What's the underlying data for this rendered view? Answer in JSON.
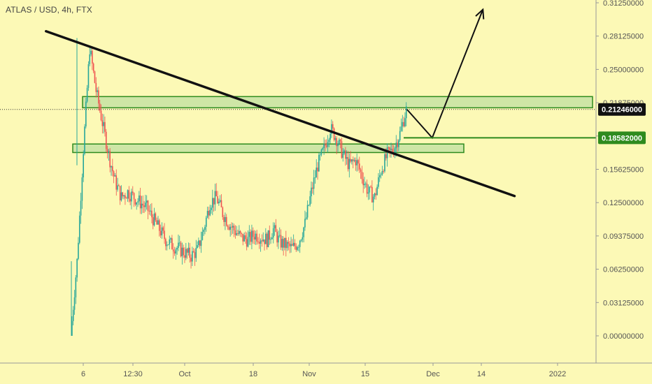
{
  "symbol_title": "ATLAS / USD, 4h, FTX",
  "colors": {
    "background": "#fcf9b6",
    "up_candle": "#26a69a",
    "down_candle": "#ef5350",
    "zone_fill": "#c9e3a4",
    "zone_stroke": "#2e8b1e",
    "drawing": "#111111",
    "axis_text": "#555555",
    "axis_line": "#999999"
  },
  "chart_data": {
    "type": "candlestick",
    "title": "ATLAS / USD, 4h, FTX",
    "y_axis": {
      "ticks": [
        "0.31250000",
        "0.28125000",
        "0.25000000",
        "0.21875000",
        "0.18750000",
        "0.15625000",
        "0.12500000",
        "0.09375000",
        "0.06250000",
        "0.03125000",
        "0.00000000"
      ],
      "range": [
        0.0,
        0.3125
      ]
    },
    "x_axis": {
      "ticks": [
        "6",
        "12:30",
        "Oct",
        "18",
        "Nov",
        "15",
        "Dec",
        "14",
        "2022"
      ]
    },
    "price_labels": [
      {
        "value": "0.21246000",
        "style": "current-price"
      },
      {
        "value": "0.18582000",
        "style": "green-level"
      }
    ],
    "price_path_close": [
      [
        0,
        0.0
      ],
      [
        1,
        0.07
      ],
      [
        2,
        0.175
      ],
      [
        3,
        0.27
      ],
      [
        4,
        0.23
      ],
      [
        5,
        0.2
      ],
      [
        6,
        0.17
      ],
      [
        7,
        0.145
      ],
      [
        8,
        0.13
      ],
      [
        9,
        0.135
      ],
      [
        10,
        0.13
      ],
      [
        11,
        0.125
      ],
      [
        12,
        0.12
      ],
      [
        13,
        0.11
      ],
      [
        14,
        0.1
      ],
      [
        15,
        0.09
      ],
      [
        16,
        0.085
      ],
      [
        17,
        0.082
      ],
      [
        18,
        0.078
      ],
      [
        19,
        0.075
      ],
      [
        20,
        0.08
      ],
      [
        21,
        0.1
      ],
      [
        22,
        0.125
      ],
      [
        23,
        0.13
      ],
      [
        24,
        0.115
      ],
      [
        25,
        0.105
      ],
      [
        26,
        0.098
      ],
      [
        27,
        0.092
      ],
      [
        28,
        0.09
      ],
      [
        29,
        0.095
      ],
      [
        30,
        0.093
      ],
      [
        31,
        0.09
      ],
      [
        32,
        0.1
      ],
      [
        33,
        0.088
      ],
      [
        34,
        0.085
      ],
      [
        35,
        0.082
      ],
      [
        36,
        0.088
      ],
      [
        37,
        0.105
      ],
      [
        38,
        0.135
      ],
      [
        39,
        0.16
      ],
      [
        40,
        0.175
      ],
      [
        41,
        0.195
      ],
      [
        42,
        0.185
      ],
      [
        43,
        0.17
      ],
      [
        44,
        0.16
      ],
      [
        45,
        0.165
      ],
      [
        46,
        0.15
      ],
      [
        47,
        0.135
      ],
      [
        48,
        0.13
      ],
      [
        49,
        0.155
      ],
      [
        50,
        0.17
      ],
      [
        51,
        0.175
      ],
      [
        52,
        0.19
      ],
      [
        53,
        0.212
      ]
    ],
    "zones": [
      {
        "name": "upper-resistance-zone",
        "y_low": 0.214,
        "y_high": 0.2245
      },
      {
        "name": "lower-support-zone",
        "y_low": 0.172,
        "y_high": 0.18
      }
    ],
    "drawings": [
      {
        "type": "trendline",
        "from": [
          -4,
          0.2858
        ],
        "to": [
          70,
          0.1312
        ]
      },
      {
        "type": "projection-arrow",
        "points": [
          [
            53,
            0.2125
          ],
          [
            57,
            0.1858
          ],
          [
            65,
            0.3062
          ]
        ]
      },
      {
        "type": "horizontal-level",
        "value": 0.18582
      }
    ]
  }
}
